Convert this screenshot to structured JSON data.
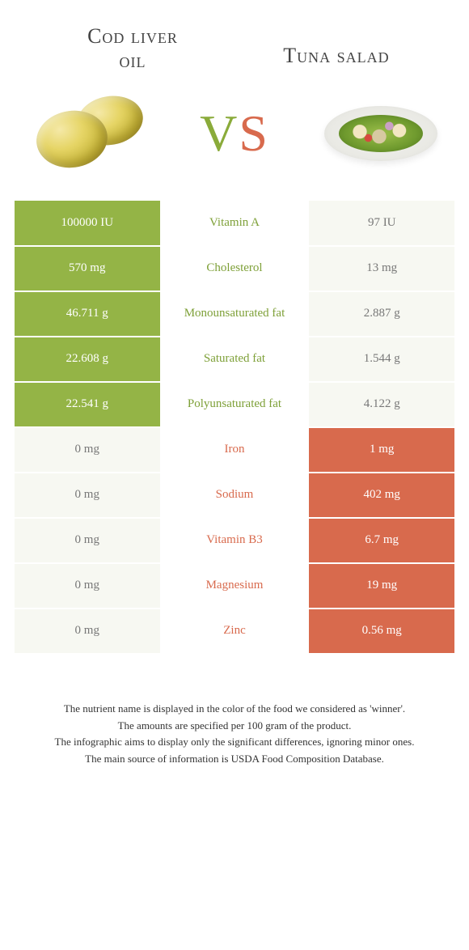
{
  "colors": {
    "green": "#94b446",
    "red": "#d86a4d",
    "pale": "#f7f8f2",
    "green_text": "#7ea038",
    "red_text": "#d86a4d",
    "pale_text": "#777777"
  },
  "header": {
    "left_name_line1": "Cod liver",
    "left_name_line2": "oil",
    "right_name": "Tuna salad",
    "vs_v": "V",
    "vs_s": "S"
  },
  "rows": [
    {
      "nutrient": "Vitamin A",
      "left_value": "100000 IU",
      "right_value": "97 IU",
      "winner": "left"
    },
    {
      "nutrient": "Cholesterol",
      "left_value": "570 mg",
      "right_value": "13 mg",
      "winner": "left"
    },
    {
      "nutrient": "Monounsaturated fat",
      "left_value": "46.711 g",
      "right_value": "2.887 g",
      "winner": "left"
    },
    {
      "nutrient": "Saturated fat",
      "left_value": "22.608 g",
      "right_value": "1.544 g",
      "winner": "left"
    },
    {
      "nutrient": "Polyunsaturated fat",
      "left_value": "22.541 g",
      "right_value": "4.122 g",
      "winner": "left"
    },
    {
      "nutrient": "Iron",
      "left_value": "0 mg",
      "right_value": "1 mg",
      "winner": "right"
    },
    {
      "nutrient": "Sodium",
      "left_value": "0 mg",
      "right_value": "402 mg",
      "winner": "right"
    },
    {
      "nutrient": "Vitamin B3",
      "left_value": "0 mg",
      "right_value": "6.7 mg",
      "winner": "right"
    },
    {
      "nutrient": "Magnesium",
      "left_value": "0 mg",
      "right_value": "19 mg",
      "winner": "right"
    },
    {
      "nutrient": "Zinc",
      "left_value": "0 mg",
      "right_value": "0.56 mg",
      "winner": "right"
    }
  ],
  "footnotes": [
    "The nutrient name is displayed in the color of the food we considered as 'winner'.",
    "The amounts are specified per 100 gram of the product.",
    "The infographic aims to display only the significant differences, ignoring minor ones.",
    "The main source of information is USDA Food Composition Database."
  ]
}
